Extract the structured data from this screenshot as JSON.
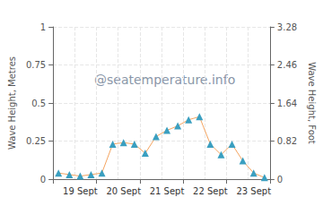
{
  "chart_data": {
    "type": "line",
    "categories": [
      null,
      null,
      "19 Sept",
      null,
      null,
      null,
      "20 Sept",
      null,
      null,
      null,
      "21 Sept",
      null,
      null,
      null,
      "22 Sept",
      null,
      null,
      null,
      "23 Sept",
      null
    ],
    "values": [
      0.04,
      0.03,
      0.02,
      0.03,
      0.04,
      0.23,
      0.24,
      0.23,
      0.17,
      0.28,
      0.32,
      0.35,
      0.39,
      0.41,
      0.23,
      0.16,
      0.23,
      0.12,
      0.04,
      0.01
    ],
    "color": "#f4a460",
    "marker": "triangle",
    "ylabel": "Wave Height, Metres",
    "ylim": [
      0,
      1
    ],
    "yticks": [
      0,
      0.25,
      0.5,
      0.75,
      1
    ],
    "y2label": "Wave Height, Foot",
    "y2lim": [
      0,
      3.28
    ],
    "y2ticks": [
      0,
      0.82,
      1.64,
      2.46,
      3.28
    ],
    "annotations": [
      "@seatemperature.info"
    ],
    "grid": true
  }
}
